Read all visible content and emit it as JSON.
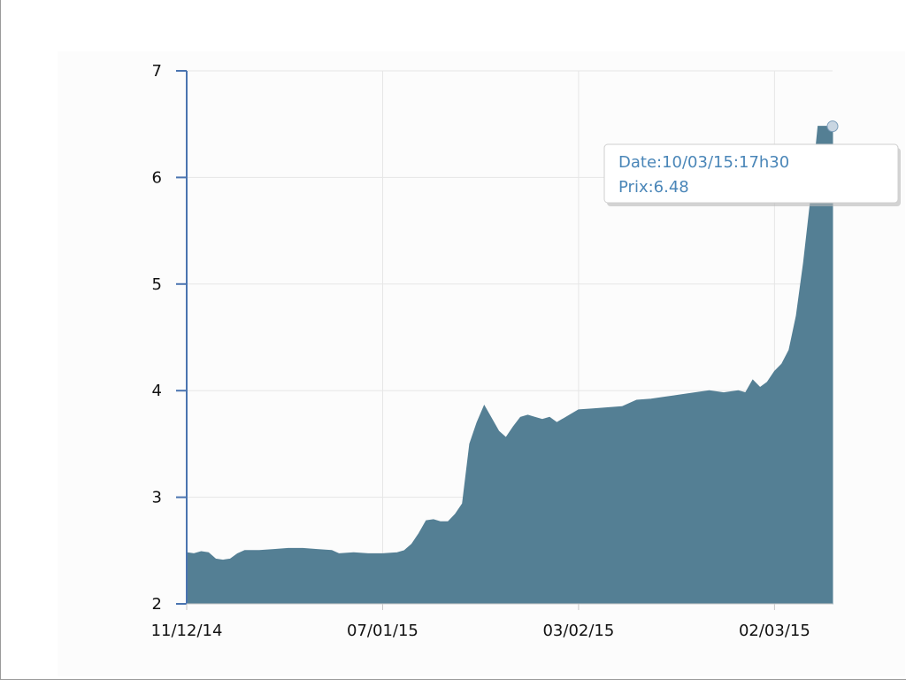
{
  "chart_data": {
    "type": "area",
    "x_axis_type": "date",
    "y_axis_type": "linear",
    "ylim": [
      2,
      7
    ],
    "yticks": [
      2,
      3,
      4,
      5,
      6,
      7
    ],
    "xlim": [
      "2014-12-11",
      "2015-03-10"
    ],
    "xticks": [
      {
        "date": "2014-12-11",
        "label": "11/12/14"
      },
      {
        "date": "2015-01-07",
        "label": "07/01/15"
      },
      {
        "date": "2015-02-03",
        "label": "03/02/15"
      },
      {
        "date": "2015-03-02",
        "label": "02/03/15"
      }
    ],
    "grid": true,
    "colors": {
      "area": "#547f94",
      "grid": "#e6e6e6",
      "axis": "#4a74b0",
      "tooltip_text": "#4a86b8"
    },
    "series": [
      {
        "points": [
          [
            "2014-12-11",
            2.48
          ],
          [
            "2014-12-12",
            2.47
          ],
          [
            "2014-12-13",
            2.49
          ],
          [
            "2014-12-14",
            2.48
          ],
          [
            "2014-12-15",
            2.42
          ],
          [
            "2014-12-16",
            2.41
          ],
          [
            "2014-12-17",
            2.42
          ],
          [
            "2014-12-18",
            2.47
          ],
          [
            "2014-12-19",
            2.5
          ],
          [
            "2014-12-21",
            2.5
          ],
          [
            "2014-12-23",
            2.51
          ],
          [
            "2014-12-25",
            2.52
          ],
          [
            "2014-12-27",
            2.52
          ],
          [
            "2014-12-29",
            2.51
          ],
          [
            "2014-12-31",
            2.5
          ],
          [
            "2015-01-01",
            2.47
          ],
          [
            "2015-01-03",
            2.48
          ],
          [
            "2015-01-05",
            2.47
          ],
          [
            "2015-01-07",
            2.47
          ],
          [
            "2015-01-09",
            2.48
          ],
          [
            "2015-01-10",
            2.5
          ],
          [
            "2015-01-11",
            2.56
          ],
          [
            "2015-01-12",
            2.66
          ],
          [
            "2015-01-13",
            2.78
          ],
          [
            "2015-01-14",
            2.79
          ],
          [
            "2015-01-15",
            2.77
          ],
          [
            "2015-01-16",
            2.77
          ],
          [
            "2015-01-17",
            2.84
          ],
          [
            "2015-01-18",
            2.94
          ],
          [
            "2015-01-19",
            3.5
          ],
          [
            "2015-01-20",
            3.7
          ],
          [
            "2015-01-21",
            3.86
          ],
          [
            "2015-01-22",
            3.74
          ],
          [
            "2015-01-23",
            3.62
          ],
          [
            "2015-01-24",
            3.56
          ],
          [
            "2015-01-25",
            3.66
          ],
          [
            "2015-01-26",
            3.75
          ],
          [
            "2015-01-27",
            3.77
          ],
          [
            "2015-01-28",
            3.75
          ],
          [
            "2015-01-29",
            3.73
          ],
          [
            "2015-01-30",
            3.75
          ],
          [
            "2015-01-31",
            3.7
          ],
          [
            "2015-02-01",
            3.74
          ],
          [
            "2015-02-02",
            3.78
          ],
          [
            "2015-02-03",
            3.82
          ],
          [
            "2015-02-05",
            3.83
          ],
          [
            "2015-02-07",
            3.84
          ],
          [
            "2015-02-09",
            3.85
          ],
          [
            "2015-02-11",
            3.91
          ],
          [
            "2015-02-13",
            3.92
          ],
          [
            "2015-02-15",
            3.94
          ],
          [
            "2015-02-17",
            3.96
          ],
          [
            "2015-02-19",
            3.98
          ],
          [
            "2015-02-21",
            4.0
          ],
          [
            "2015-02-23",
            3.98
          ],
          [
            "2015-02-25",
            4.0
          ],
          [
            "2015-02-26",
            3.98
          ],
          [
            "2015-02-27",
            4.1
          ],
          [
            "2015-02-28",
            4.03
          ],
          [
            "2015-03-01",
            4.08
          ],
          [
            "2015-03-02",
            4.18
          ],
          [
            "2015-03-03",
            4.25
          ],
          [
            "2015-03-04",
            4.38
          ],
          [
            "2015-03-05",
            4.7
          ],
          [
            "2015-03-06",
            5.2
          ],
          [
            "2015-03-07",
            5.8
          ],
          [
            "2015-03-08",
            6.48
          ],
          [
            "2015-03-09",
            6.48
          ],
          [
            "2015-03-10",
            6.48
          ]
        ]
      }
    ],
    "tooltip": {
      "line1": "Date:10/03/15:17h30",
      "line2": "Prix:6.48",
      "anchor_date": "2015-03-10",
      "anchor_value": 6.48
    }
  }
}
